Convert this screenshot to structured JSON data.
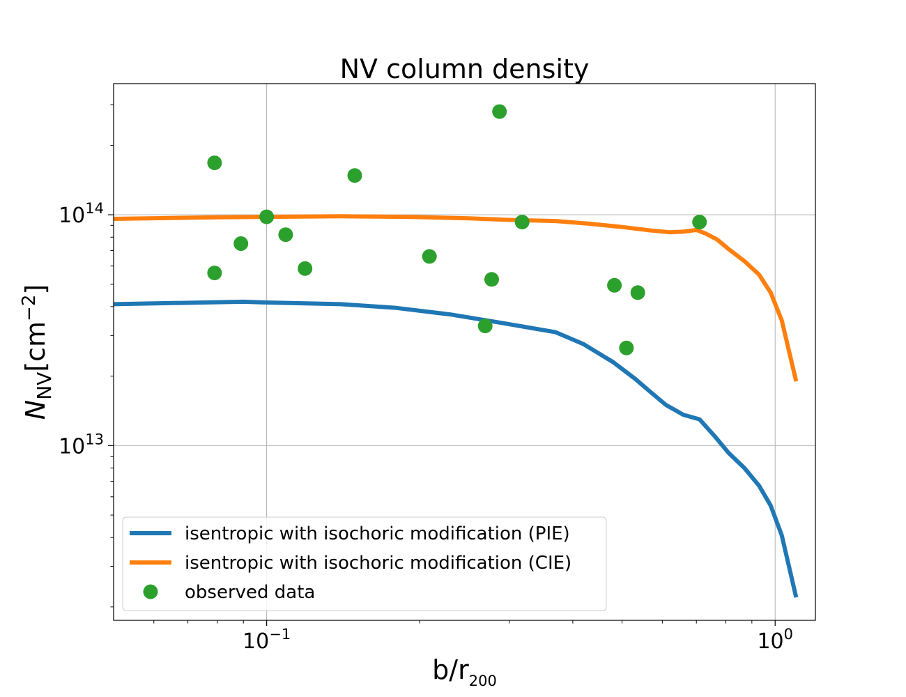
{
  "chart_data": {
    "type": "line",
    "title": "NV column density",
    "xlabel": {
      "base": "b/r",
      "sub": "200"
    },
    "ylabel": {
      "italic": "N",
      "sub": "NV",
      "unit_pre": "[cm",
      "unit_sup": "−2",
      "unit_post": "]"
    },
    "xscale": "log",
    "yscale": "log",
    "xlim": [
      0.05,
      1.2
    ],
    "ylim": [
      1750000000000.0,
      370000000000000.0
    ],
    "grid": true,
    "legend_position": "lower-left",
    "x_ticks": [
      {
        "value": 0.1,
        "base": "10",
        "exp": "−1"
      },
      {
        "value": 1.0,
        "base": "10",
        "exp": "0"
      }
    ],
    "y_ticks": [
      {
        "value": 10000000000000.0,
        "base": "10",
        "exp": "13"
      },
      {
        "value": 100000000000000.0,
        "base": "10",
        "exp": "14"
      }
    ],
    "series": [
      {
        "name": "isentropic with isochoric modification (PIE)",
        "kind": "line",
        "color": "#1f77b4",
        "x": [
          0.05,
          0.09,
          0.1,
          0.14,
          0.18,
          0.23,
          0.29,
          0.37,
          0.42,
          0.48,
          0.53,
          0.57,
          0.61,
          0.66,
          0.71,
          0.76,
          0.81,
          0.87,
          0.93,
          0.98,
          1.03,
          1.1
        ],
        "y": [
          41000000000000.0,
          42000000000000.0,
          41700000000000.0,
          41000000000000.0,
          39500000000000.0,
          37000000000000.0,
          34000000000000.0,
          31000000000000.0,
          27500000000000.0,
          23000000000000.0,
          19500000000000.0,
          17000000000000.0,
          15000000000000.0,
          13600000000000.0,
          13000000000000.0,
          11000000000000.0,
          9300000000000.0,
          8000000000000.0,
          6700000000000.0,
          5500000000000.0,
          4100000000000.0,
          2200000000000.0
        ]
      },
      {
        "name": "isentropic with isochoric modification (CIE)",
        "kind": "line",
        "color": "#ff7f0e",
        "x": [
          0.05,
          0.08,
          0.1,
          0.14,
          0.19,
          0.25,
          0.3,
          0.37,
          0.43,
          0.5,
          0.57,
          0.62,
          0.66,
          0.7,
          0.73,
          0.77,
          0.81,
          0.87,
          0.93,
          0.98,
          1.03,
          1.1
        ],
        "y": [
          96000000000000.0,
          97500000000000.0,
          98000000000000.0,
          98500000000000.0,
          98000000000000.0,
          96500000000000.0,
          95000000000000.0,
          94000000000000.0,
          91500000000000.0,
          88500000000000.0,
          85500000000000.0,
          84000000000000.0,
          84500000000000.0,
          86000000000000.0,
          83000000000000.0,
          78000000000000.0,
          71000000000000.0,
          63000000000000.0,
          55000000000000.0,
          46000000000000.0,
          35000000000000.0,
          19000000000000.0
        ]
      },
      {
        "name": "observed data",
        "kind": "scatter",
        "color": "#2ca02c",
        "x": [
          0.079,
          0.079,
          0.089,
          0.1,
          0.109,
          0.119,
          0.149,
          0.209,
          0.269,
          0.277,
          0.287,
          0.318,
          0.483,
          0.51,
          0.537,
          0.71
        ],
        "y": [
          168000000000000.0,
          56000000000000.0,
          75000000000000.0,
          98000000000000.0,
          82000000000000.0,
          58500000000000.0,
          148000000000000.0,
          66000000000000.0,
          33000000000000.0,
          52500000000000.0,
          280000000000000.0,
          93000000000000.0,
          49500000000000.0,
          26500000000000.0,
          46000000000000.0,
          93000000000000.0
        ]
      }
    ]
  }
}
